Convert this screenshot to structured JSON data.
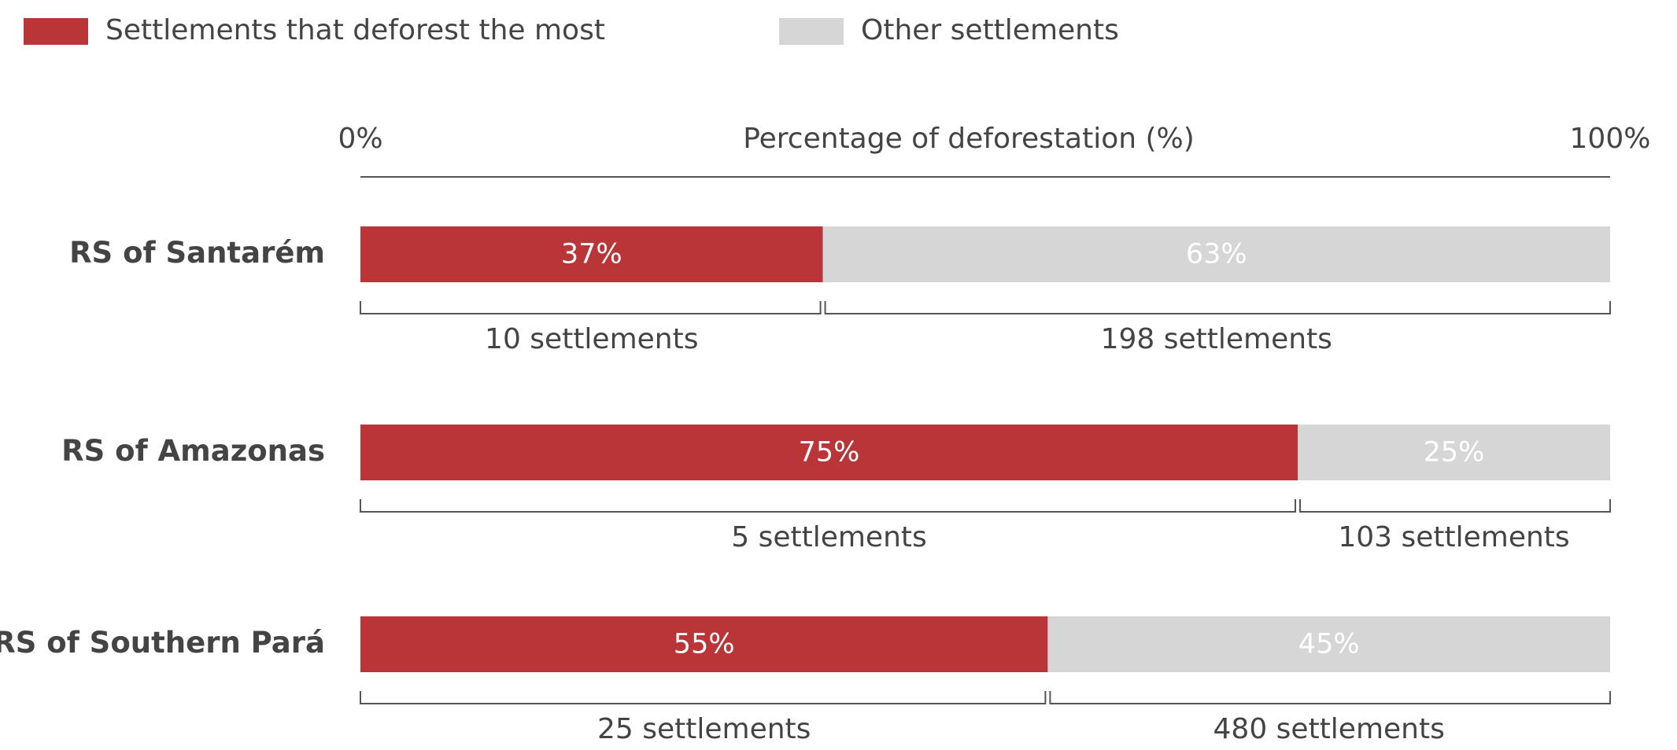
{
  "chart_data": {
    "type": "stacked-bar-horizontal",
    "x_label": "Percentage of deforestation (%)",
    "xlim": [
      0,
      100
    ],
    "xticks": [
      {
        "value": 0,
        "label": "0%"
      },
      {
        "value": 100,
        "label": "100%"
      }
    ],
    "legend": "top-left",
    "categories": [
      "RS of Santarém",
      "RS of Amazonas",
      "RS of Southern Pará"
    ],
    "series": [
      {
        "name": "Settlements that deforest the most",
        "color": "#b93537",
        "values": [
          37,
          75,
          55
        ],
        "value_labels": [
          "37%",
          "75%",
          "55%"
        ],
        "bracket_labels": [
          "10 settlements",
          "5 settlements",
          "25 settlements"
        ]
      },
      {
        "name": "Other settlements",
        "color": "#d6d6d6",
        "values": [
          63,
          25,
          45
        ],
        "value_labels": [
          "63%",
          "25%",
          "45%"
        ],
        "bracket_labels": [
          "198 settlements",
          "103 settlements",
          "480 settlements"
        ]
      }
    ]
  }
}
